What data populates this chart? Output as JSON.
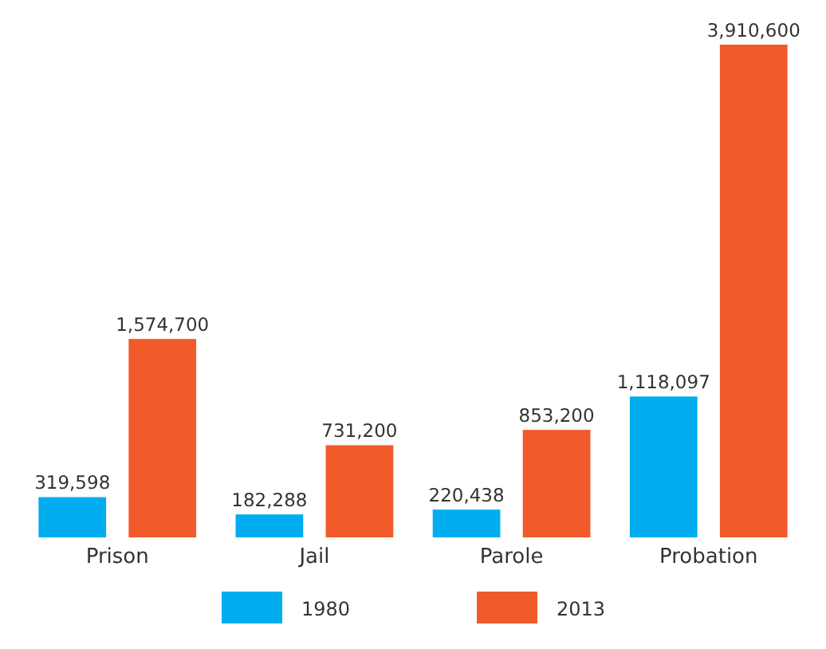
{
  "chart_data": {
    "type": "bar",
    "categories": [
      "Prison",
      "Jail",
      "Parole",
      "Probation"
    ],
    "series": [
      {
        "name": "1980",
        "color": "#00aeef",
        "values": [
          319598,
          182288,
          220438,
          1118097
        ],
        "value_labels": [
          "319,598",
          "182,288",
          "220,438",
          "1,118,097"
        ]
      },
      {
        "name": "2013",
        "color": "#f15a2b",
        "values": [
          1574700,
          731200,
          853200,
          3910600
        ],
        "value_labels": [
          "1,574,700",
          "731,200",
          "853,200",
          "3,910,600"
        ]
      }
    ],
    "legend": "bottom"
  }
}
